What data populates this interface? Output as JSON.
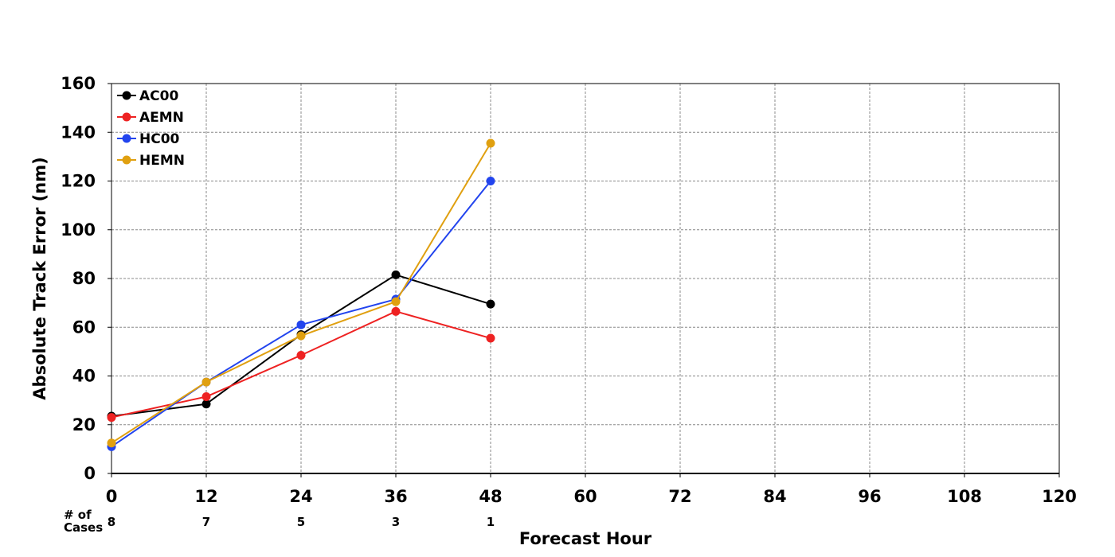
{
  "chart_data": {
    "type": "line",
    "title": "",
    "xlabel": "Forecast Hour",
    "ylabel": "Absolute Track Error (nm)",
    "xlim": [
      0,
      120
    ],
    "ylim": [
      0,
      160
    ],
    "xticks": [
      0,
      12,
      24,
      36,
      48,
      60,
      72,
      84,
      96,
      108,
      120
    ],
    "yticks": [
      0,
      20,
      40,
      60,
      80,
      100,
      120,
      140,
      160
    ],
    "grid": true,
    "legend_position": "top-left",
    "cases_label": "# of Cases",
    "cases_label_lines": [
      "# of",
      "Cases"
    ],
    "cases": [
      {
        "x": 0,
        "n": "8"
      },
      {
        "x": 12,
        "n": "7"
      },
      {
        "x": 24,
        "n": "5"
      },
      {
        "x": 36,
        "n": "3"
      },
      {
        "x": 48,
        "n": "1"
      }
    ],
    "series": [
      {
        "name": "AC00",
        "color": "#000000",
        "x": [
          0,
          12,
          24,
          36,
          48
        ],
        "values": [
          23.5,
          28.5,
          57,
          81.5,
          69.5
        ]
      },
      {
        "name": "AEMN",
        "color": "#ee2222",
        "x": [
          0,
          12,
          24,
          36,
          48
        ],
        "values": [
          23,
          31.5,
          48.5,
          66.5,
          55.5
        ]
      },
      {
        "name": "HC00",
        "color": "#2244ee",
        "x": [
          0,
          12,
          24,
          36,
          48
        ],
        "values": [
          11,
          37.5,
          61,
          71.5,
          120
        ]
      },
      {
        "name": "HEMN",
        "color": "#e0a010",
        "x": [
          0,
          12,
          24,
          36,
          48
        ],
        "values": [
          12.5,
          37.5,
          56.5,
          70.5,
          135.5
        ]
      }
    ]
  }
}
